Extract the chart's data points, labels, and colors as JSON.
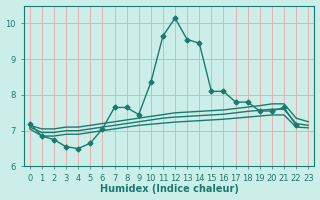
{
  "xlabel": "Humidex (Indice chaleur)",
  "background_color": "#cceee8",
  "grid_color": "#e8b0b0",
  "line_color": "#1a7a6e",
  "xlim": [
    -0.5,
    23.5
  ],
  "ylim": [
    6.0,
    10.5
  ],
  "yticks": [
    6,
    7,
    8,
    9,
    10
  ],
  "xticks": [
    0,
    1,
    2,
    3,
    4,
    5,
    6,
    7,
    8,
    9,
    10,
    11,
    12,
    13,
    14,
    15,
    16,
    17,
    18,
    19,
    20,
    21,
    22,
    23
  ],
  "main_x": [
    0,
    1,
    2,
    3,
    4,
    5,
    6,
    7,
    8,
    9,
    10,
    11,
    12,
    13,
    14,
    15,
    16,
    17,
    18,
    19,
    20,
    21,
    22
  ],
  "main_y": [
    7.2,
    6.85,
    6.75,
    6.55,
    6.5,
    6.65,
    7.05,
    7.65,
    7.65,
    7.45,
    8.35,
    9.65,
    10.15,
    9.55,
    9.45,
    8.1,
    8.1,
    7.8,
    7.8,
    7.55,
    7.55,
    7.65,
    7.15
  ],
  "trend1_x": [
    0,
    1,
    2,
    3,
    4,
    5,
    6,
    7,
    8,
    9,
    10,
    11,
    12,
    13,
    14,
    15,
    16,
    17,
    18,
    19,
    20,
    21,
    22,
    23
  ],
  "trend1_y": [
    7.15,
    7.05,
    7.05,
    7.1,
    7.1,
    7.15,
    7.2,
    7.25,
    7.3,
    7.35,
    7.4,
    7.45,
    7.5,
    7.52,
    7.54,
    7.56,
    7.58,
    7.62,
    7.66,
    7.7,
    7.75,
    7.75,
    7.35,
    7.25
  ],
  "trend2_x": [
    0,
    1,
    2,
    3,
    4,
    5,
    6,
    7,
    8,
    9,
    10,
    11,
    12,
    13,
    14,
    15,
    16,
    17,
    18,
    19,
    20,
    21,
    22,
    23
  ],
  "trend2_y": [
    7.1,
    6.95,
    6.95,
    7.0,
    7.0,
    7.05,
    7.1,
    7.15,
    7.2,
    7.25,
    7.3,
    7.35,
    7.38,
    7.4,
    7.42,
    7.44,
    7.46,
    7.5,
    7.54,
    7.57,
    7.6,
    7.6,
    7.2,
    7.15
  ],
  "trend3_x": [
    0,
    1,
    2,
    3,
    4,
    5,
    6,
    7,
    8,
    9,
    10,
    11,
    12,
    13,
    14,
    15,
    16,
    17,
    18,
    19,
    20,
    21,
    22,
    23
  ],
  "trend3_y": [
    7.05,
    6.85,
    6.85,
    6.9,
    6.9,
    6.95,
    7.0,
    7.05,
    7.1,
    7.15,
    7.18,
    7.21,
    7.24,
    7.26,
    7.28,
    7.3,
    7.32,
    7.35,
    7.38,
    7.41,
    7.44,
    7.44,
    7.1,
    7.08
  ],
  "marker": "D",
  "markersize": 2.5,
  "linewidth": 1.0,
  "fontsize_ticks": 6,
  "fontsize_label": 7
}
